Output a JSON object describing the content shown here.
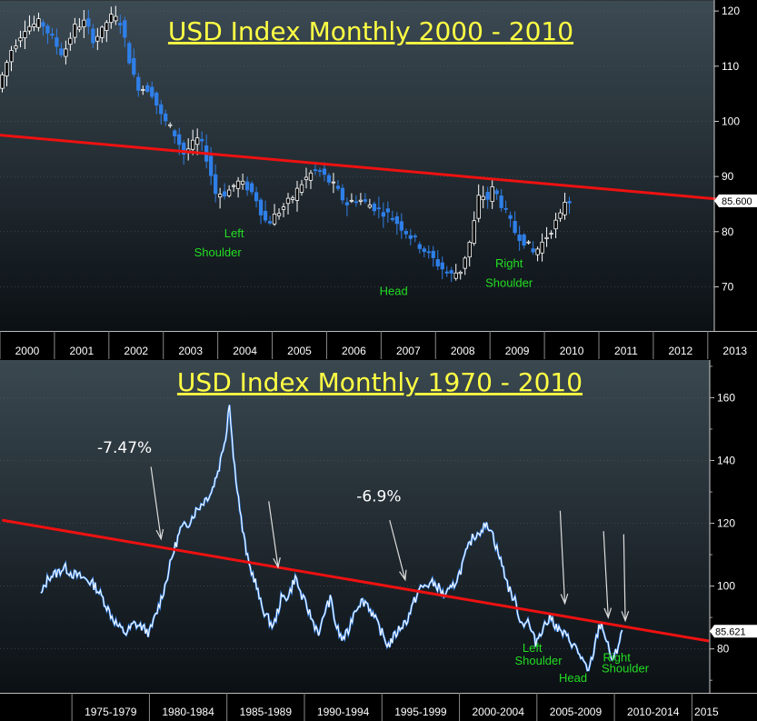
{
  "chart_data": [
    {
      "type": "candlestick",
      "title": "USD Index Monthly 2000 - 2010",
      "x_labels": [
        "2000",
        "2001",
        "2002",
        "2003",
        "2004",
        "2005",
        "2006",
        "2007",
        "2008",
        "2009",
        "2010",
        "2011",
        "2012",
        "2013"
      ],
      "y_ticks": [
        "120",
        "110",
        "100",
        "90",
        "80",
        "70"
      ],
      "ylim": [
        62,
        122
      ],
      "last_value": "85.600",
      "price_path": [
        [
          2000.0,
          106
        ],
        [
          2000.25,
          113
        ],
        [
          2000.5,
          117
        ],
        [
          2000.8,
          118
        ],
        [
          2001.0,
          115
        ],
        [
          2001.2,
          112
        ],
        [
          2001.4,
          117
        ],
        [
          2001.6,
          118
        ],
        [
          2001.75,
          115
        ],
        [
          2001.9,
          116
        ],
        [
          2002.0,
          118
        ],
        [
          2002.1,
          119
        ],
        [
          2002.25,
          118
        ],
        [
          2002.4,
          112
        ],
        [
          2002.5,
          108
        ],
        [
          2002.6,
          106
        ],
        [
          2002.8,
          106
        ],
        [
          2003.0,
          101
        ],
        [
          2003.15,
          99
        ],
        [
          2003.3,
          97
        ],
        [
          2003.4,
          94
        ],
        [
          2003.6,
          96
        ],
        [
          2003.7,
          97
        ],
        [
          2003.85,
          93
        ],
        [
          2004.0,
          87
        ],
        [
          2004.2,
          87
        ],
        [
          2004.4,
          89
        ],
        [
          2004.6,
          88
        ],
        [
          2004.75,
          86
        ],
        [
          2004.9,
          82
        ],
        [
          2005.0,
          82
        ],
        [
          2005.2,
          84
        ],
        [
          2005.4,
          86
        ],
        [
          2005.6,
          89
        ],
        [
          2005.8,
          91
        ],
        [
          2005.9,
          91
        ],
        [
          2006.0,
          90
        ],
        [
          2006.2,
          88
        ],
        [
          2006.4,
          85
        ],
        [
          2006.6,
          86
        ],
        [
          2006.8,
          85
        ],
        [
          2007.0,
          84
        ],
        [
          2007.2,
          83
        ],
        [
          2007.4,
          81
        ],
        [
          2007.6,
          79
        ],
        [
          2007.8,
          77
        ],
        [
          2008.0,
          75
        ],
        [
          2008.2,
          73
        ],
        [
          2008.3,
          72
        ],
        [
          2008.5,
          73
        ],
        [
          2008.7,
          79
        ],
        [
          2008.85,
          87
        ],
        [
          2009.0,
          86
        ],
        [
          2009.1,
          88
        ],
        [
          2009.3,
          84
        ],
        [
          2009.5,
          80
        ],
        [
          2009.7,
          78
        ],
        [
          2009.85,
          76
        ],
        [
          2010.0,
          78
        ],
        [
          2010.2,
          81
        ],
        [
          2010.35,
          83
        ],
        [
          2010.45,
          87
        ],
        [
          2010.5,
          85.6
        ]
      ],
      "trendline": {
        "x": [
          2000,
          2013.2
        ],
        "y": [
          97.5,
          85.9
        ]
      },
      "annotations": [
        {
          "text": "Left",
          "x": 2004.3,
          "y": 79
        },
        {
          "text": "Shoulder",
          "x": 2004.0,
          "y": 75.5
        },
        {
          "text": "Head",
          "x": 2007.23,
          "y": 68.5
        },
        {
          "text": "Right",
          "x": 2009.35,
          "y": 73.5
        },
        {
          "text": "Shoulder",
          "x": 2009.35,
          "y": 70
        }
      ]
    },
    {
      "type": "line",
      "title": "USD Index Monthly 1970 - 2010",
      "x_labels": [
        "1975-1979",
        "1980-1984",
        "1985-1989",
        "1990-1994",
        "1995-1999",
        "2000-2004",
        "2005-2009",
        "2010-2014",
        "2015"
      ],
      "y_ticks": [
        "160",
        "140",
        "120",
        "100",
        "80"
      ],
      "ylim": [
        66,
        172
      ],
      "last_value": "85.621",
      "series": [
        {
          "values": [
            [
              1973.0,
              97
            ],
            [
              1973.5,
              103
            ],
            [
              1974.0,
              104
            ],
            [
              1974.5,
              106
            ],
            [
              1975.0,
              104
            ],
            [
              1975.5,
              103
            ],
            [
              1976.0,
              102
            ],
            [
              1976.5,
              100
            ],
            [
              1977.0,
              96
            ],
            [
              1977.5,
              91
            ],
            [
              1978.0,
              87
            ],
            [
              1978.5,
              85
            ],
            [
              1979.0,
              88
            ],
            [
              1979.5,
              87
            ],
            [
              1980.0,
              85
            ],
            [
              1980.5,
              92
            ],
            [
              1981.0,
              100
            ],
            [
              1981.5,
              110
            ],
            [
              1982.0,
              118
            ],
            [
              1982.5,
              120
            ],
            [
              1983.0,
              124
            ],
            [
              1983.5,
              127
            ],
            [
              1984.0,
              130
            ],
            [
              1984.5,
              138
            ],
            [
              1985.0,
              150
            ],
            [
              1985.15,
              160
            ],
            [
              1985.4,
              142
            ],
            [
              1985.7,
              130
            ],
            [
              1986.0,
              118
            ],
            [
              1986.4,
              107
            ],
            [
              1986.8,
              102
            ],
            [
              1987.2,
              94
            ],
            [
              1987.6,
              90
            ],
            [
              1988.0,
              87
            ],
            [
              1988.5,
              96
            ],
            [
              1989.0,
              97
            ],
            [
              1989.4,
              103
            ],
            [
              1989.8,
              97
            ],
            [
              1990.2,
              93
            ],
            [
              1990.6,
              88
            ],
            [
              1991.0,
              85
            ],
            [
              1991.3,
              92
            ],
            [
              1991.7,
              96
            ],
            [
              1992.0,
              88
            ],
            [
              1992.4,
              83
            ],
            [
              1992.8,
              85
            ],
            [
              1993.2,
              92
            ],
            [
              1993.6,
              95
            ],
            [
              1994.0,
              95
            ],
            [
              1994.5,
              90
            ],
            [
              1995.0,
              85
            ],
            [
              1995.4,
              81
            ],
            [
              1995.8,
              84
            ],
            [
              1996.2,
              87
            ],
            [
              1996.6,
              89
            ],
            [
              1997.0,
              94
            ],
            [
              1997.4,
              99
            ],
            [
              1997.8,
              100
            ],
            [
              1998.2,
              101
            ],
            [
              1998.6,
              100
            ],
            [
              1999.0,
              97
            ],
            [
              1999.5,
              99
            ],
            [
              2000.0,
              104
            ],
            [
              2000.4,
              110
            ],
            [
              2000.8,
              115
            ],
            [
              2001.2,
              117
            ],
            [
              2001.6,
              119
            ],
            [
              2002.0,
              119
            ],
            [
              2002.4,
              112
            ],
            [
              2002.8,
              106
            ],
            [
              2003.2,
              99
            ],
            [
              2003.6,
              95
            ],
            [
              2004.0,
              88
            ],
            [
              2004.4,
              89
            ],
            [
              2004.9,
              82
            ],
            [
              2005.4,
              87
            ],
            [
              2005.9,
              90
            ],
            [
              2006.4,
              86
            ],
            [
              2006.9,
              84
            ],
            [
              2007.4,
              81
            ],
            [
              2007.9,
              77
            ],
            [
              2008.3,
              72
            ],
            [
              2008.7,
              80
            ],
            [
              2009.0,
              87
            ],
            [
              2009.2,
              88
            ],
            [
              2009.5,
              82
            ],
            [
              2009.9,
              76
            ],
            [
              2010.2,
              80
            ],
            [
              2010.45,
              86
            ],
            [
              2010.5,
              85.6
            ]
          ]
        }
      ],
      "trendline": {
        "x": [
          1970.5,
          2016.1
        ],
        "y": [
          121,
          82.5
        ]
      },
      "percent_labels": [
        {
          "text": "-7.47%",
          "x": 1978.4,
          "y": 142.5
        },
        {
          "text": "-6.9%",
          "x": 1994.8,
          "y": 127
        }
      ],
      "arrows": [
        {
          "from": [
            1980.1,
            138
          ],
          "to": [
            1980.75,
            115
          ]
        },
        {
          "from": [
            1987.7,
            127
          ],
          "to": [
            1988.3,
            106
          ]
        },
        {
          "from": [
            1995.5,
            121
          ],
          "to": [
            1996.5,
            102
          ]
        },
        {
          "from": [
            2006.5,
            124
          ],
          "to": [
            2006.8,
            94.5
          ]
        },
        {
          "from": [
            2009.3,
            117.5
          ],
          "to": [
            2009.6,
            90
          ]
        },
        {
          "from": [
            2010.6,
            116.5
          ],
          "to": [
            2010.7,
            89
          ]
        }
      ],
      "annotations": [
        {
          "text": "Left",
          "x": 2004.7,
          "y": 79
        },
        {
          "text": "Shoulder",
          "x": 2005.1,
          "y": 75
        },
        {
          "text": "Head",
          "x": 2007.33,
          "y": 69.5
        },
        {
          "text": "Right",
          "x": 2010.15,
          "y": 76
        },
        {
          "text": "Shoulder",
          "x": 2010.7,
          "y": 72.5
        }
      ]
    }
  ]
}
